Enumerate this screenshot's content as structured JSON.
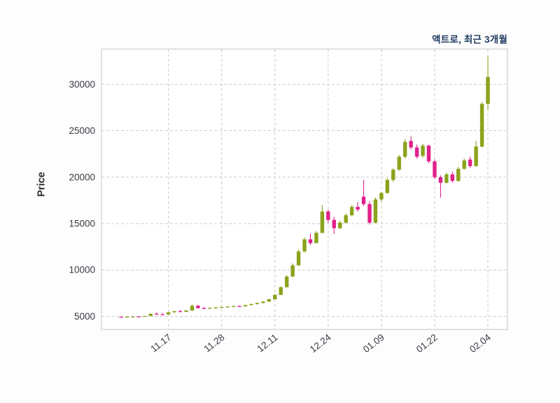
{
  "colors": {
    "up": "#8aa31b",
    "down": "#e0218a",
    "grid": "#cccccc",
    "spine": "#c4c4c4",
    "tick": "#3a3a44",
    "title": "#1e3a5f",
    "ylabel": "#2b2b33",
    "background": "#fdfdfd",
    "plot_background": "#ffffff"
  },
  "chart_data": {
    "type": "candlestick",
    "title": "액트로, 최근 3개월",
    "ylabel": "Price",
    "xlabel": "",
    "grid": "dashed",
    "legend": "none",
    "ylim": [
      3600,
      33800
    ],
    "y_ticks": [
      5000,
      10000,
      15000,
      20000,
      25000,
      30000
    ],
    "x_ticks": [
      {
        "index": 8,
        "label": "11.17"
      },
      {
        "index": 17,
        "label": "11.28"
      },
      {
        "index": 26,
        "label": "12.11"
      },
      {
        "index": 35,
        "label": "12.24"
      },
      {
        "index": 44,
        "label": "01.09"
      },
      {
        "index": 53,
        "label": "01.22"
      },
      {
        "index": 62,
        "label": "02.04"
      }
    ],
    "ohlc_order": [
      "open",
      "high",
      "low",
      "close"
    ],
    "candles": [
      [
        4950,
        4990,
        4920,
        4945
      ],
      [
        4945,
        4985,
        4925,
        4975
      ],
      [
        4975,
        5010,
        4950,
        4990
      ],
      [
        4990,
        5025,
        4960,
        4980
      ],
      [
        4980,
        5060,
        4970,
        5045
      ],
      [
        5045,
        5330,
        5040,
        5280
      ],
      [
        5280,
        5430,
        5180,
        5230
      ],
      [
        5230,
        5380,
        5150,
        5200
      ],
      [
        5200,
        5480,
        5190,
        5450
      ],
      [
        5450,
        5600,
        5380,
        5560
      ],
      [
        5560,
        5720,
        5450,
        5500
      ],
      [
        5500,
        5680,
        5460,
        5640
      ],
      [
        5640,
        6280,
        5600,
        6150
      ],
      [
        6150,
        6230,
        5840,
        5900
      ],
      [
        5900,
        6020,
        5780,
        5830
      ],
      [
        5830,
        5960,
        5770,
        5920
      ],
      [
        5920,
        6010,
        5850,
        5960
      ],
      [
        5960,
        6060,
        5890,
        6010
      ],
      [
        6010,
        6100,
        5950,
        6060
      ],
      [
        6060,
        6160,
        6000,
        6120
      ],
      [
        6120,
        6180,
        6020,
        6080
      ],
      [
        6080,
        6260,
        6060,
        6220
      ],
      [
        6220,
        6380,
        6180,
        6330
      ],
      [
        6330,
        6490,
        6280,
        6450
      ],
      [
        6450,
        6640,
        6400,
        6600
      ],
      [
        6600,
        6900,
        6560,
        6850
      ],
      [
        6850,
        7400,
        6800,
        7320
      ],
      [
        7320,
        8250,
        7300,
        8150
      ],
      [
        8150,
        9450,
        8100,
        9300
      ],
      [
        9300,
        10700,
        9250,
        10500
      ],
      [
        10500,
        12200,
        10450,
        12000
      ],
      [
        12000,
        13500,
        11900,
        13300
      ],
      [
        13300,
        13900,
        12700,
        12900
      ],
      [
        12900,
        14200,
        12850,
        14000
      ],
      [
        14000,
        17000,
        13950,
        16300
      ],
      [
        16300,
        16500,
        15100,
        15400
      ],
      [
        15400,
        15700,
        13900,
        14500
      ],
      [
        14500,
        15300,
        14400,
        15100
      ],
      [
        15100,
        16100,
        15000,
        15900
      ],
      [
        15900,
        17000,
        15800,
        16800
      ],
      [
        16800,
        17300,
        16300,
        16500
      ],
      [
        17900,
        19700,
        16900,
        17100
      ],
      [
        17100,
        17400,
        14900,
        15100
      ],
      [
        15100,
        17800,
        15000,
        17600
      ],
      [
        17600,
        18400,
        17400,
        18300
      ],
      [
        18300,
        19900,
        18200,
        19700
      ],
      [
        19700,
        21000,
        19500,
        20800
      ],
      [
        20800,
        22400,
        20700,
        22200
      ],
      [
        22200,
        24100,
        22000,
        23800
      ],
      [
        23900,
        24400,
        23000,
        23200
      ],
      [
        23200,
        23500,
        22000,
        22200
      ],
      [
        22300,
        23600,
        22100,
        23400
      ],
      [
        23400,
        23500,
        21500,
        21700
      ],
      [
        21700,
        21900,
        19800,
        20000
      ],
      [
        20000,
        20200,
        17800,
        19400
      ],
      [
        19400,
        20500,
        19300,
        20300
      ],
      [
        20300,
        20600,
        19400,
        19600
      ],
      [
        19600,
        21100,
        19500,
        20900
      ],
      [
        20900,
        22000,
        20800,
        21800
      ],
      [
        21900,
        22200,
        21000,
        21200
      ],
      [
        21200,
        23900,
        21100,
        23300
      ],
      [
        23300,
        28100,
        23200,
        27900
      ],
      [
        27900,
        33000,
        27200,
        30800
      ]
    ]
  }
}
